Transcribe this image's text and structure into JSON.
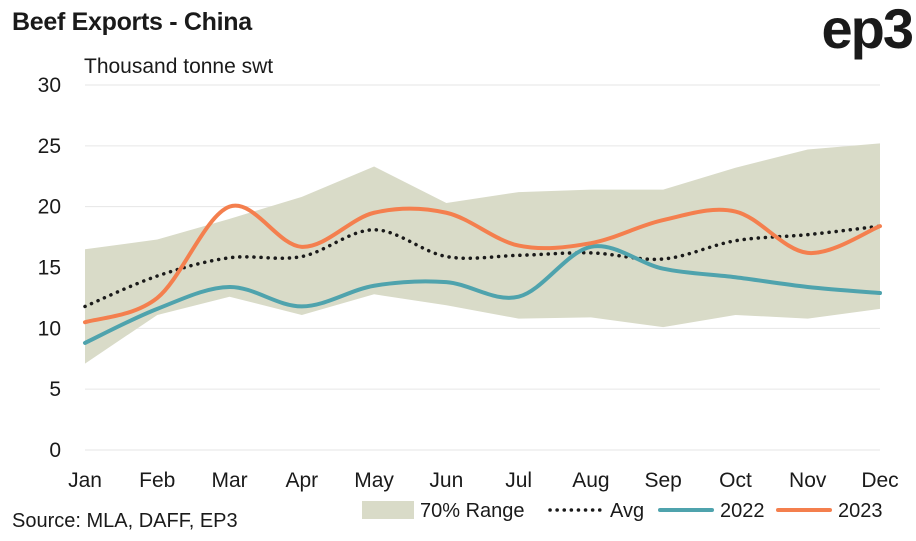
{
  "header": {
    "title": "Beef Exports - China",
    "logo": "ep3"
  },
  "footer": {
    "source": "Source: MLA, DAFF, EP3"
  },
  "chart_data": {
    "type": "line",
    "ylabel": "Thousand tonne swt",
    "categories": [
      "Jan",
      "Feb",
      "Mar",
      "Apr",
      "May",
      "Jun",
      "Jul",
      "Aug",
      "Sep",
      "Oct",
      "Nov",
      "Dec"
    ],
    "ylim": [
      0,
      30
    ],
    "yticks": [
      0,
      5,
      10,
      15,
      20,
      25,
      30
    ],
    "grid": true,
    "legend_position": "bottom-right",
    "range_band": {
      "name": "70% Range",
      "color": "#d9dbc8",
      "upper": [
        16.5,
        17.3,
        19.0,
        20.8,
        23.3,
        20.3,
        21.2,
        21.4,
        21.4,
        23.2,
        24.7,
        25.2
      ],
      "lower": [
        7.1,
        11.1,
        12.6,
        11.1,
        12.8,
        11.9,
        10.8,
        10.9,
        10.1,
        11.1,
        10.8,
        11.6
      ]
    },
    "series": [
      {
        "name": "Avg",
        "style": "dotted",
        "color": "#1a1a1a",
        "values": [
          11.8,
          14.3,
          15.8,
          15.9,
          18.1,
          15.9,
          16.0,
          16.2,
          15.7,
          17.2,
          17.7,
          18.4
        ]
      },
      {
        "name": "2022",
        "style": "solid",
        "color": "#4fa3ad",
        "values": [
          8.8,
          11.6,
          13.4,
          11.8,
          13.5,
          13.8,
          12.6,
          16.7,
          14.9,
          14.2,
          13.4,
          12.9
        ]
      },
      {
        "name": "2023",
        "style": "solid",
        "color": "#f47f4e",
        "values": [
          10.5,
          12.5,
          20.0,
          16.7,
          19.5,
          19.5,
          16.8,
          17.0,
          18.9,
          19.6,
          16.2,
          18.4
        ]
      }
    ]
  }
}
